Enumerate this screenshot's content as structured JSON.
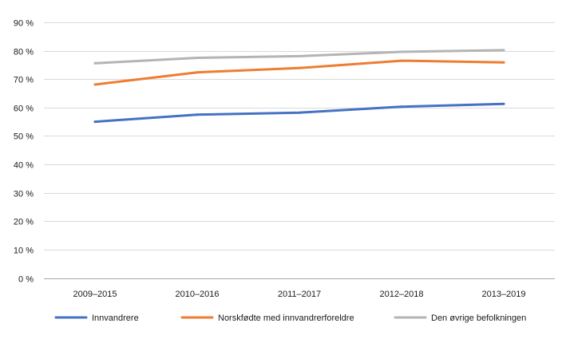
{
  "chart_data": {
    "type": "line",
    "title": "",
    "xlabel": "",
    "ylabel": "",
    "categories": [
      "2009–2015",
      "2010–2016",
      "2011–2017",
      "2012–2018",
      "2013–2019"
    ],
    "ylim": [
      0,
      90
    ],
    "yticks": [
      0,
      10,
      20,
      30,
      40,
      50,
      60,
      70,
      80,
      90
    ],
    "ytick_labels": [
      "0 %",
      "10 %",
      "20 %",
      "30 %",
      "40 %",
      "50 %",
      "60 %",
      "70 %",
      "80 %",
      "90 %"
    ],
    "grid": true,
    "legend_position": "bottom",
    "series": [
      {
        "name": "Innvandrere",
        "color": "#4472c4",
        "values": [
          55,
          57.5,
          58.2,
          60.3,
          61.3
        ]
      },
      {
        "name": "Norskfødte med innvandrerforeldre",
        "color": "#ed7d31",
        "values": [
          68.1,
          72.4,
          73.9,
          76.5,
          75.9
        ]
      },
      {
        "name": "Den øvrige befolkningen",
        "color": "#b4b4b4",
        "values": [
          75.6,
          77.5,
          78.1,
          79.6,
          80.2
        ]
      }
    ]
  }
}
